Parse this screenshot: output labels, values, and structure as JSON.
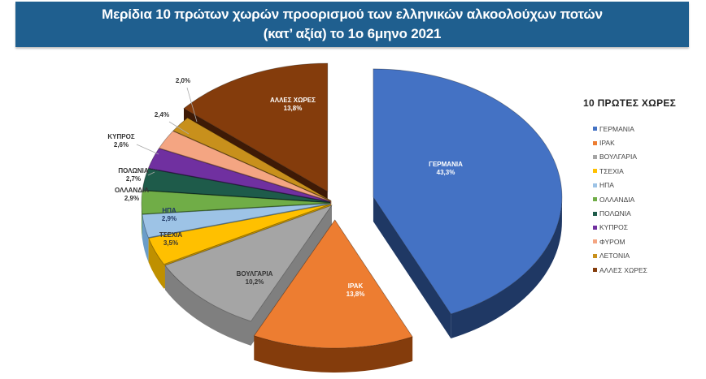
{
  "title": {
    "line1": "Μερίδια 10 πρώτων χωρών προορισμού των ελληνικών αλκοολούχων ποτών",
    "line2": "(κατ’ αξία) το 1ο 6μηνο 2021"
  },
  "legend": {
    "title": "10 ΠΡΩΤΕΣ ΧΩΡΕΣ"
  },
  "chart_data": {
    "type": "pie",
    "style": "3d-exploded",
    "title": "Μερίδια 10 πρώτων χωρών προορισμού των ελληνικών αλκοολούχων ποτών (κατ’ αξία) το 1ο 6μηνο 2021",
    "legend_title": "10 ΠΡΩΤΕΣ ΧΩΡΕΣ",
    "legend_position": "right",
    "unit": "%",
    "categories": [
      "ΓΕΡΜΑΝΙΑ",
      "ΙΡΑΚ",
      "ΒΟΥΛΓΑΡΙΑ",
      "ΤΣΕΧΙΑ",
      "ΗΠΑ",
      "ΟΛΛΑΝΔΙΑ",
      "ΠΟΛΩΝΙΑ",
      "ΚΥΠΡΟΣ",
      "ΦΥΡΟΜ",
      "ΛΕΤΟΝΙΑ",
      "ΑΛΛΕΣ ΧΩΡΕΣ"
    ],
    "values": [
      43.3,
      13.8,
      10.2,
      3.5,
      2.9,
      2.9,
      2.7,
      2.6,
      2.4,
      2.0,
      13.8
    ],
    "data_labels": [
      "ΓΕΡΜΑΝΙΑ\n43,3%",
      "ΙΡΑΚ\n13,8%",
      "ΒΟΥΛΓΑΡΙΑ\n10,2%",
      "ΤΣΕΧΙΑ\n3,5%",
      "ΗΠΑ\n2,9%",
      "ΟΛΛΑΝΔΙΑ\n2,9%",
      "ΠΟΛΩΝΙΑ\n2,7%",
      "ΚΥΠΡΟΣ\n2,6%",
      "2,4%",
      "2,0%",
      "ΑΛΛΕΣ ΧΩΡΕΣ\n13,8%"
    ],
    "colors": [
      "#4472c4",
      "#ed7d31",
      "#a5a5a5",
      "#ffc000",
      "#9dc3e6",
      "#70ad47",
      "#1e5b4a",
      "#7030a0",
      "#f4a582",
      "#c8901c",
      "#843c0c"
    ],
    "side_colors": [
      "#1f3864",
      "#843c0c",
      "#7f7f7f",
      "#bf9000",
      "#6a9dc9",
      "#4e8a2e",
      "#0f3a2e",
      "#4b1f6f",
      "#c07a5a",
      "#8a6010",
      "#3e1a06"
    ],
    "label_colors": [
      "#ffffff",
      "#ffffff",
      "#333333",
      "#333333",
      "#1f3864",
      "#333333",
      "#333333",
      "#333333",
      "#333333",
      "#333333",
      "#ffffff"
    ]
  }
}
